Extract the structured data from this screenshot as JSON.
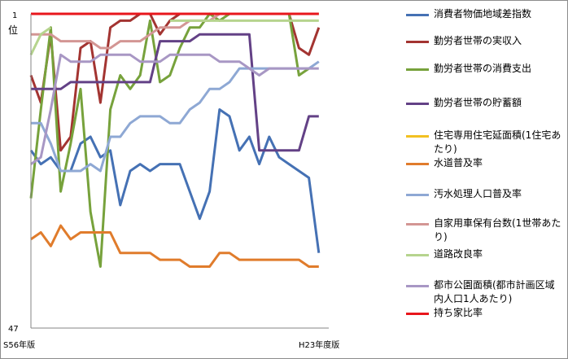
{
  "chart_data": {
    "type": "line",
    "title": "",
    "y_axis": {
      "top_label": "1",
      "unit_label": "位",
      "bottom_label": "47",
      "min": 1,
      "max": 47,
      "inverted": true
    },
    "x_axis": {
      "start_label": "S56年版",
      "end_label": "H23年度版"
    },
    "x": [
      1,
      2,
      3,
      4,
      5,
      6,
      7,
      8,
      9,
      10,
      11,
      12,
      13,
      14,
      15,
      16,
      17,
      18,
      19,
      20,
      21,
      22,
      23,
      24,
      25,
      26,
      27,
      28,
      29,
      30,
      31
    ],
    "grid": false,
    "legend_position": "right",
    "series": [
      {
        "name": "消費者物価地域差指数",
        "color": "#4571b4",
        "values": [
          21,
          23,
          22,
          24,
          24,
          20,
          19,
          22,
          21,
          29,
          24,
          23,
          24,
          23,
          23,
          23,
          27,
          31,
          27,
          15,
          16,
          21,
          19,
          23,
          19,
          22,
          23,
          24,
          25,
          36,
          null
        ]
      },
      {
        "name": "勤労者世帯の実収入",
        "color": "#a33431",
        "values": [
          10,
          14,
          4,
          21,
          19,
          6,
          5,
          14,
          3,
          2,
          2,
          1,
          1,
          4,
          2,
          1,
          1,
          1,
          1,
          1,
          1,
          1,
          1,
          1,
          1,
          1,
          1,
          6,
          7,
          3,
          null
        ]
      },
      {
        "name": "勤労者世帯の消費支出",
        "color": "#77a23c",
        "values": [
          28,
          15,
          3,
          27,
          20,
          12,
          30,
          38,
          15,
          10,
          12,
          10,
          2,
          11,
          10,
          6,
          3,
          3,
          1,
          2,
          1,
          1,
          1,
          1,
          1,
          1,
          1,
          10,
          9,
          null,
          null
        ]
      },
      {
        "name": "勤労者世帯の貯蓄額",
        "color": "#634186",
        "values": [
          12,
          12,
          12,
          12,
          11,
          11,
          11,
          11,
          11,
          11,
          11,
          11,
          11,
          5,
          5,
          5,
          5,
          4,
          4,
          4,
          4,
          4,
          4,
          21,
          21,
          21,
          21,
          21,
          16,
          16,
          null
        ]
      },
      {
        "name": "住宅専用住宅延面積(1住宅あたり)",
        "color": "#f2c021",
        "values": [
          1,
          1,
          1,
          1,
          1,
          1,
          1,
          1,
          1,
          1,
          1,
          1,
          1,
          1,
          1,
          1,
          1,
          1,
          1,
          1,
          1,
          1,
          1,
          1,
          1,
          1,
          1,
          1,
          1,
          1,
          null
        ]
      },
      {
        "name": "水道普及率",
        "color": "#e07c2c",
        "values": [
          34,
          33,
          35,
          32,
          34,
          33,
          33,
          33,
          33,
          36,
          36,
          36,
          36,
          37,
          37,
          37,
          38,
          38,
          38,
          36,
          36,
          37,
          37,
          37,
          37,
          37,
          37,
          37,
          38,
          38,
          null
        ]
      },
      {
        "name": "汚水処理人口普及率",
        "color": "#8ea8d4",
        "values": [
          17,
          17,
          20,
          24,
          24,
          24,
          23,
          24,
          19,
          19,
          17,
          16,
          16,
          16,
          17,
          17,
          15,
          14,
          12,
          12,
          11,
          9,
          9,
          9,
          9,
          9,
          9,
          9,
          9,
          8,
          null
        ]
      },
      {
        "name": "自家用車保有台数(1世帯あたり)",
        "color": "#d39694",
        "values": [
          4,
          4,
          4,
          5,
          5,
          5,
          5,
          6,
          6,
          5,
          5,
          5,
          4,
          3,
          3,
          3,
          2,
          2,
          2,
          1,
          1,
          1,
          1,
          1,
          1,
          1,
          1,
          1,
          1,
          1,
          null
        ]
      },
      {
        "name": "道路改良率",
        "color": "#b6d48e",
        "values": [
          7,
          4,
          3,
          null,
          null,
          null,
          null,
          null,
          null,
          null,
          null,
          null,
          null,
          null,
          2,
          2,
          2,
          2,
          2,
          2,
          2,
          2,
          2,
          2,
          2,
          2,
          2,
          2,
          2,
          2,
          null
        ]
      },
      {
        "name": "都市公園面積(都市計画区域内人口1人あたり)",
        "color": "#a897c4",
        "values": [
          23,
          22,
          15,
          7,
          8,
          8,
          8,
          7,
          7,
          7,
          7,
          8,
          8,
          8,
          7,
          7,
          7,
          7,
          7,
          8,
          8,
          8,
          9,
          10,
          9,
          9,
          9,
          9,
          9,
          9,
          null
        ]
      },
      {
        "name": "持ち家比率",
        "color": "#e8161c",
        "values": [
          1,
          1,
          1,
          1,
          1,
          1,
          1,
          1,
          1,
          1,
          1,
          1,
          1,
          1,
          1,
          1,
          1,
          1,
          1,
          1,
          1,
          1,
          1,
          1,
          1,
          1,
          1,
          1,
          1,
          1,
          null
        ]
      }
    ]
  }
}
